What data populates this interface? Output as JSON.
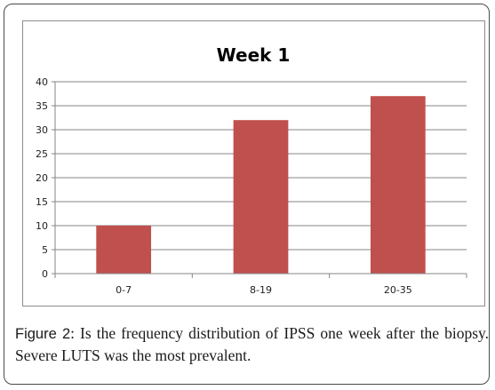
{
  "chart_data": {
    "type": "bar",
    "title": "Week 1",
    "xlabel": "",
    "ylabel": "",
    "categories": [
      "0-7",
      "8-19",
      "20-35"
    ],
    "values": [
      10,
      32,
      37
    ],
    "ylim": [
      0,
      40
    ],
    "yticks": [
      0,
      5,
      10,
      15,
      20,
      25,
      30,
      35,
      40
    ],
    "grid": true,
    "legend": "none",
    "bar_color": "#c0504d"
  },
  "caption": {
    "label": "Figure 2",
    "text": ": Is the frequency distribution of IPSS one week after the biopsy. Severe LUTS was the most prevalent."
  }
}
